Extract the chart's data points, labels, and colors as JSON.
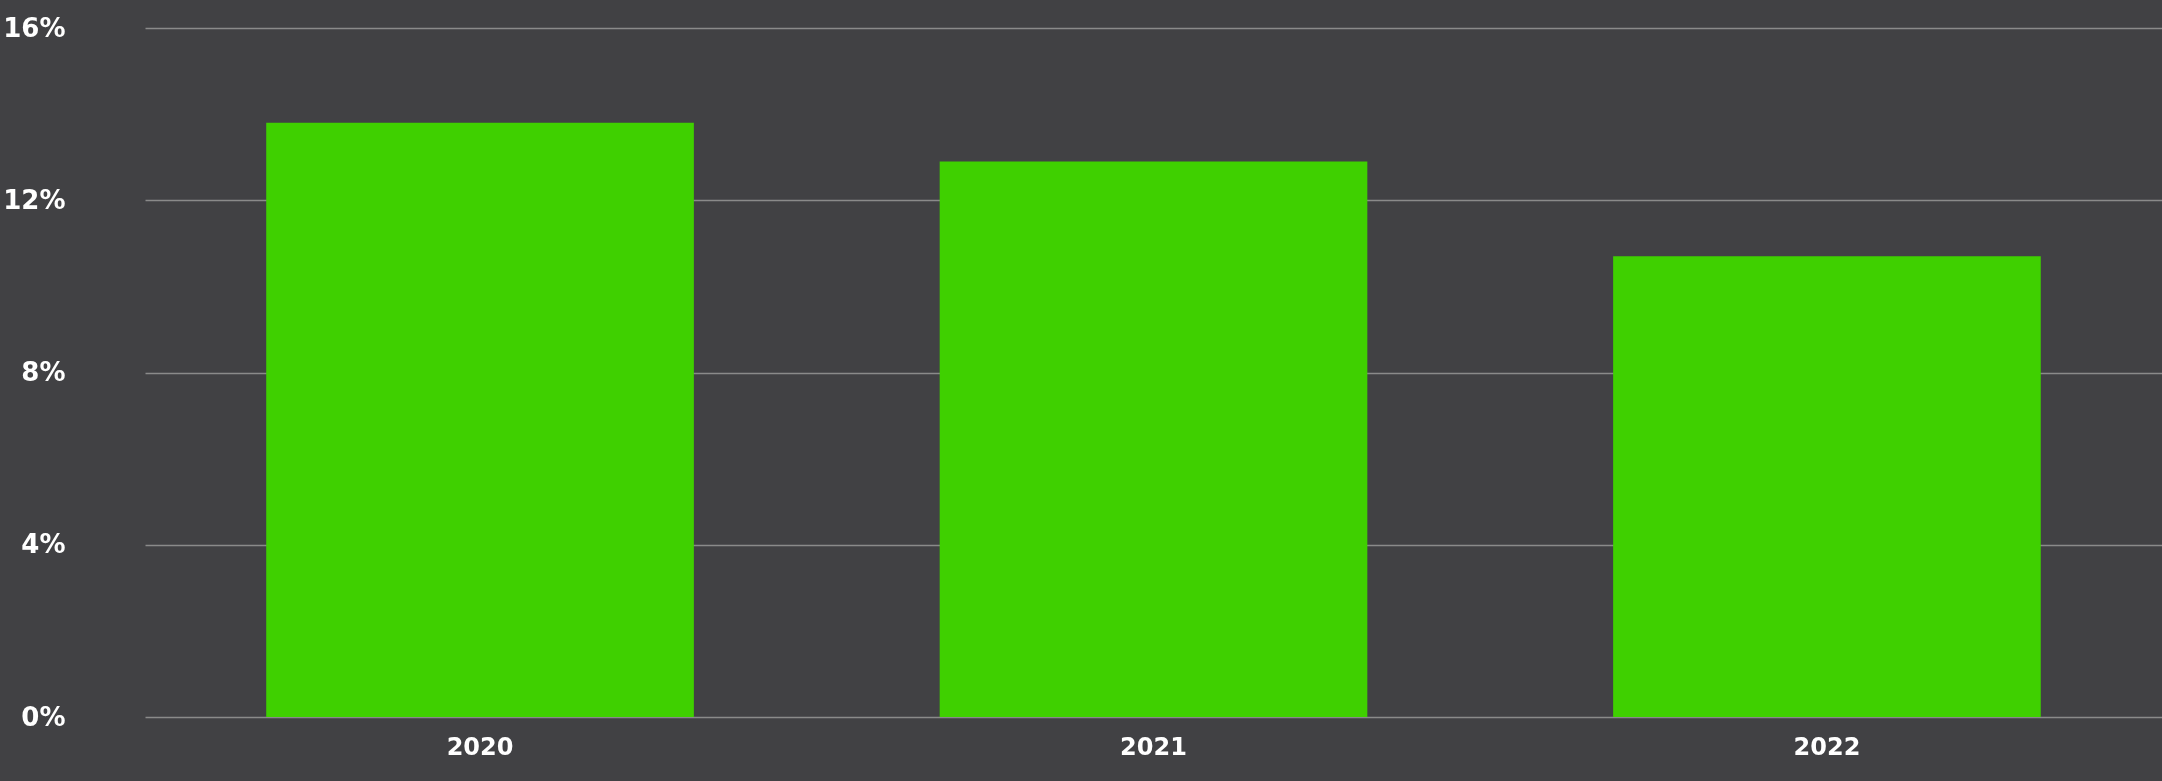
{
  "chart_data": {
    "type": "bar",
    "categories": [
      "2020",
      "2021",
      "2022"
    ],
    "values": [
      13.8,
      12.9,
      10.7
    ],
    "color": "#3fd000",
    "ylim": [
      0,
      16
    ],
    "yticks": [
      {
        "value": 0,
        "label": "0%"
      },
      {
        "value": 4,
        "label": "4%"
      },
      {
        "value": 8,
        "label": "8%"
      },
      {
        "value": 12,
        "label": "12%"
      },
      {
        "value": 16,
        "label": "16%"
      }
    ],
    "grid": "y"
  }
}
